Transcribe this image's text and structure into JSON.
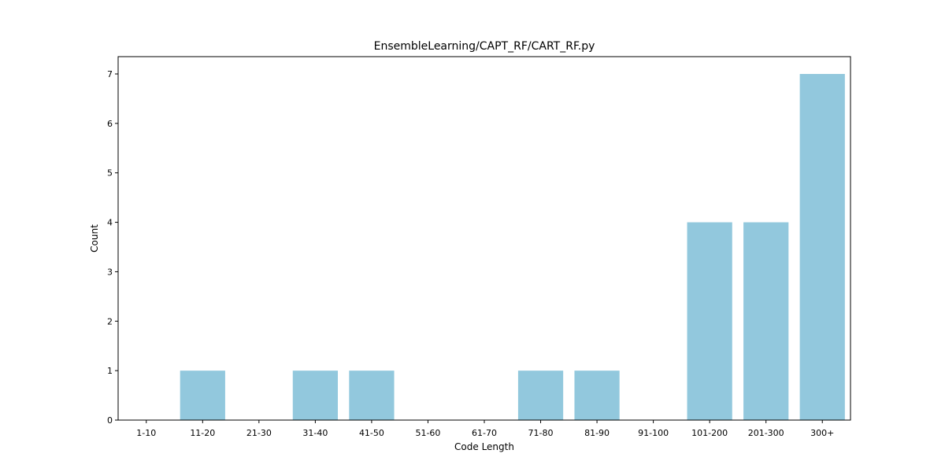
{
  "chart_data": {
    "type": "bar",
    "title": "EnsembleLearning/CAPT_RF/CART_RF.py",
    "xlabel": "Code Length",
    "ylabel": "Count",
    "categories": [
      "1-10",
      "11-20",
      "21-30",
      "31-40",
      "41-50",
      "51-60",
      "61-70",
      "71-80",
      "81-90",
      "91-100",
      "101-200",
      "201-300",
      "300+"
    ],
    "values": [
      0,
      1,
      0,
      1,
      1,
      0,
      0,
      1,
      1,
      0,
      4,
      4,
      7
    ],
    "ylim": [
      0,
      7.35
    ],
    "yticks": [
      0,
      1,
      2,
      3,
      4,
      5,
      6,
      7
    ],
    "grid": false,
    "legend": "none",
    "bar_color": "#92c8dd"
  }
}
